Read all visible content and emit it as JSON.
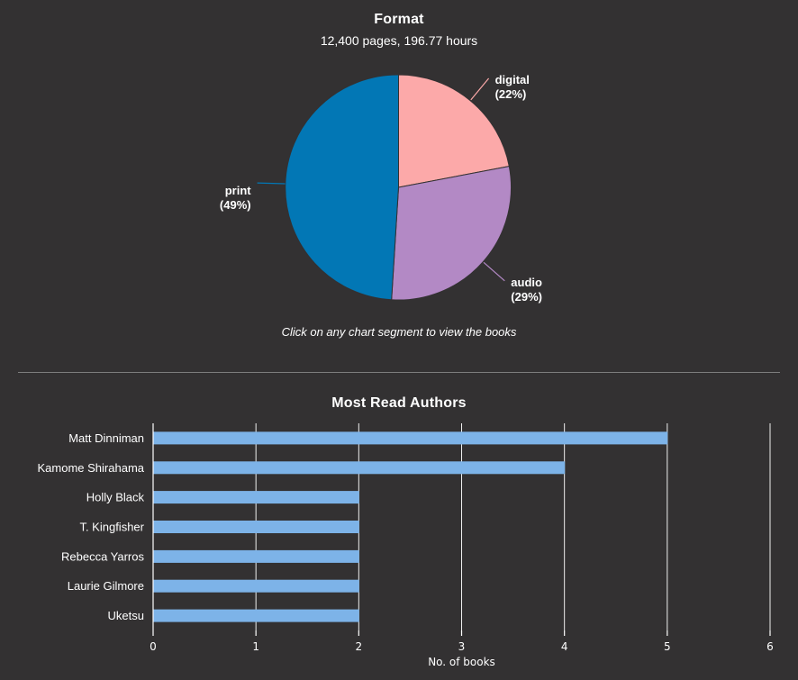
{
  "colors": {
    "background": "#333132",
    "text": "#ffffff",
    "divider": "#7d7d7d",
    "grid": "#efefef",
    "axis": "#ffffff"
  },
  "chart_data": [
    {
      "type": "pie",
      "title": "Format",
      "subtitle": "12,400 pages, 196.77 hours",
      "caption": "Click on any chart segment to view the books",
      "start_angle": "top",
      "direction": "clockwise",
      "slices": [
        {
          "label": "digital",
          "value": 22,
          "color": "#fca9a9"
        },
        {
          "label": "audio",
          "value": 29,
          "color": "#b389c5"
        },
        {
          "label": "print",
          "value": 49,
          "color": "#0277b5"
        }
      ]
    },
    {
      "type": "bar",
      "orientation": "horizontal",
      "title": "Most Read Authors",
      "categories": [
        "Matt Dinniman",
        "Kamome Shirahama",
        "Holly Black",
        "T. Kingfisher",
        "Rebecca Yarros",
        "Laurie Gilmore",
        "Uketsu"
      ],
      "values": [
        5,
        4,
        2,
        2,
        2,
        2,
        2
      ],
      "xlabel": "No. of books",
      "xticks": [
        0,
        1,
        2,
        3,
        4,
        5,
        6
      ],
      "xlim": [
        0,
        6
      ],
      "bar_color": "#7db3e8",
      "grid": true,
      "legend": "none"
    }
  ]
}
